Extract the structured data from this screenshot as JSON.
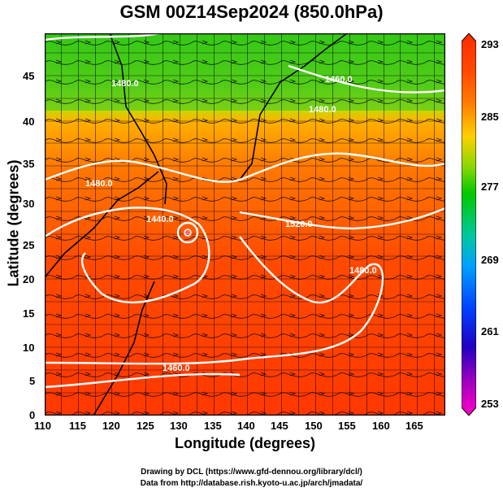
{
  "title": "GSM 00Z14Sep2024 (850.0hPa)",
  "xlabel": "Longitude (degrees)",
  "ylabel": "Latitude  (degrees)",
  "x_ticks": [
    "110",
    "115",
    "120",
    "125",
    "130",
    "135",
    "140",
    "145",
    "150",
    "155",
    "160",
    "165"
  ],
  "y_ticks": [
    "0",
    "5",
    "10",
    "15",
    "20",
    "25",
    "30",
    "35",
    "40",
    "45"
  ],
  "colorbar": {
    "ticks": [
      "293",
      "285",
      "277",
      "269",
      "261",
      "253"
    ],
    "colors": [
      "#ff2a00",
      "#ff7a00",
      "#ffd000",
      "#44c800",
      "#00c8a0",
      "#00a0ff",
      "#0040ff",
      "#2000c0",
      "#a000c0",
      "#ff00c8"
    ]
  },
  "contour_labels": [
    "1440.0",
    "1460.0",
    "1480.0",
    "1520.0",
    "1480.0",
    "1460.0",
    "1480.0",
    "1480.0"
  ],
  "credits": {
    "line1": "Drawing by DCL (https://www.gfd-dennou.org/library/dcl/)",
    "line2": "Data from http://database.rish.kyoto-u.ac.jp/arch/jmadata/"
  }
}
